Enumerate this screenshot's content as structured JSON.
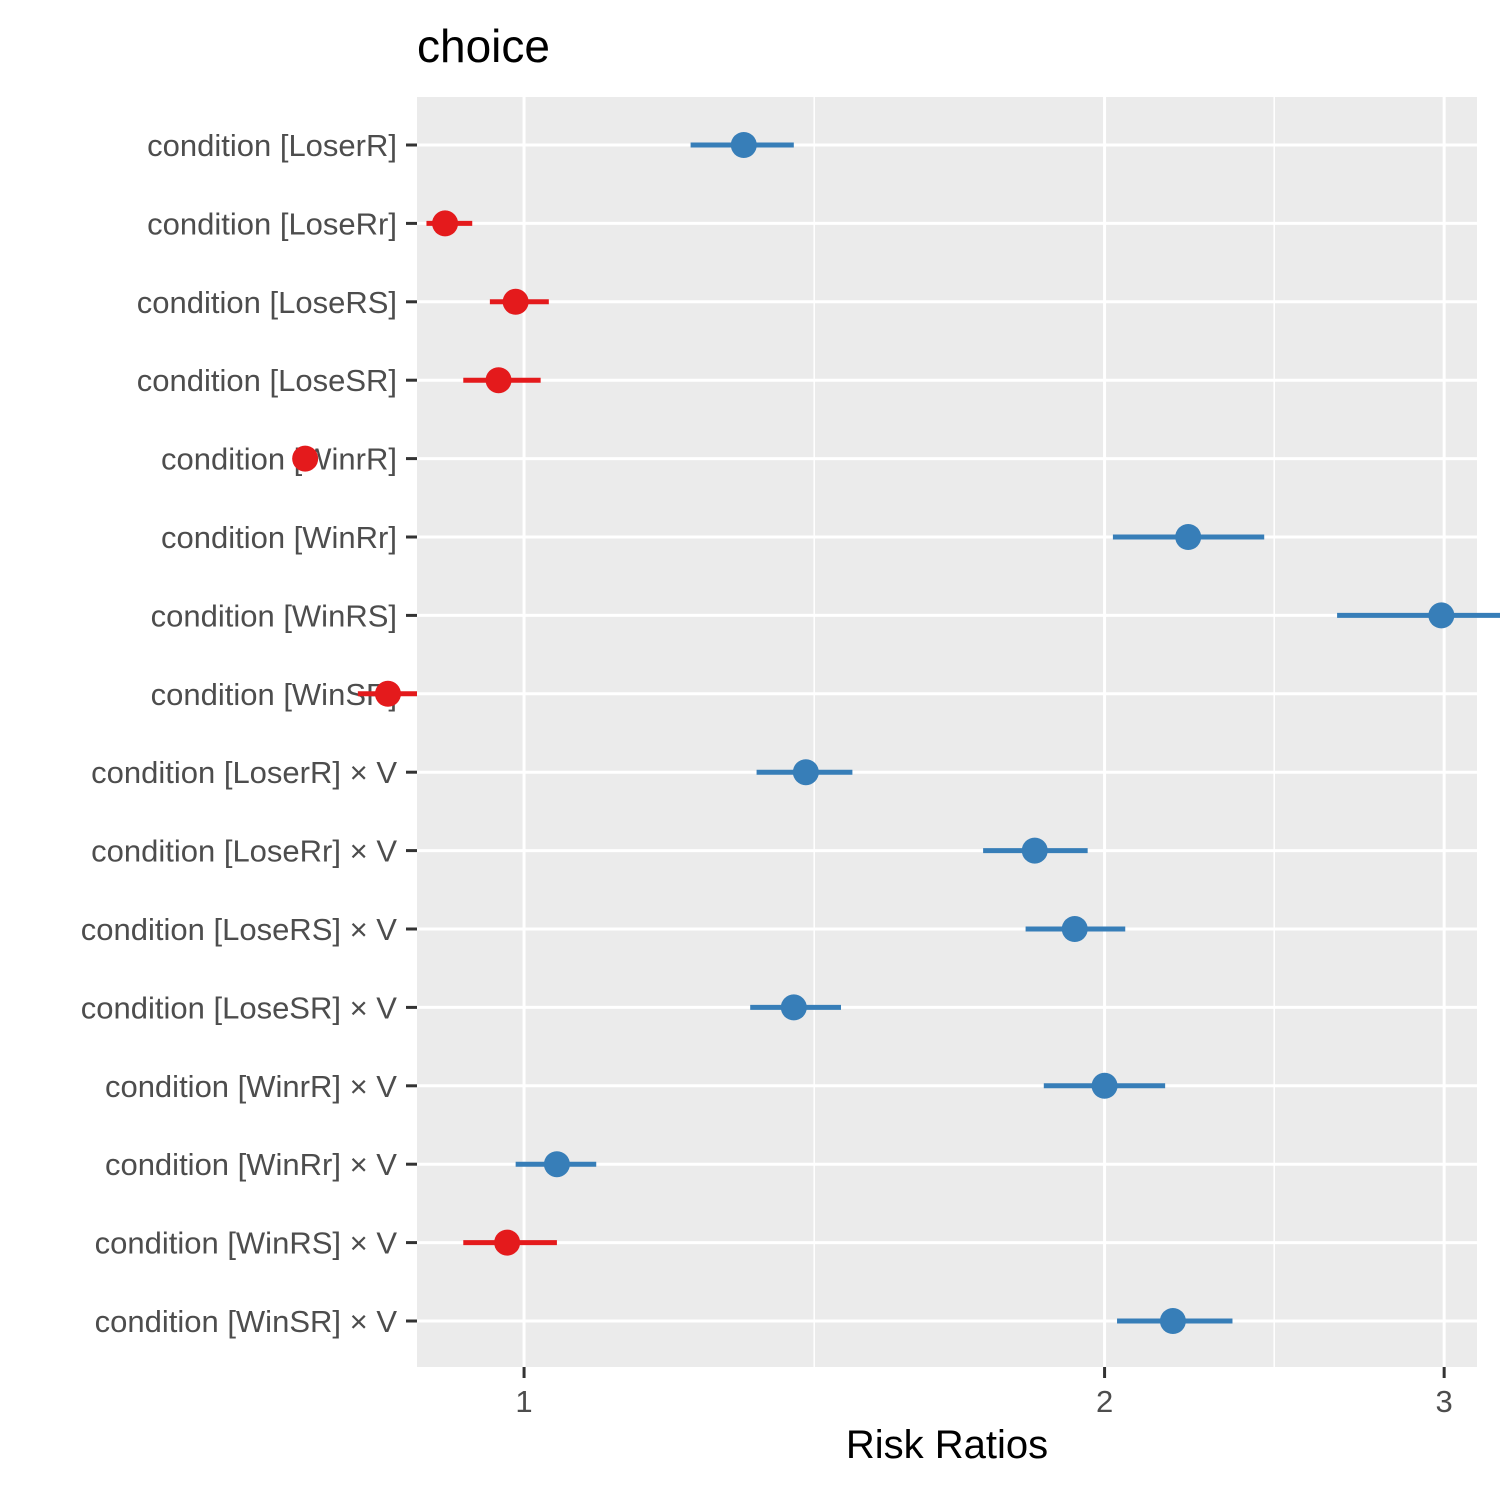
{
  "chart_data": {
    "type": "scatter",
    "title": "choice",
    "xlabel": "Risk Ratios",
    "ylabel": "",
    "x_scale": "log",
    "xlim": [
      0.88,
      3.12
    ],
    "x_ticks": [
      1,
      2,
      3
    ],
    "x_tick_labels": [
      "1",
      "2",
      "3"
    ],
    "x_minor_ticks": [
      0.707,
      1.414,
      2.449
    ],
    "grid": true,
    "legend": "none",
    "colors": {
      "positive": "#377EB8",
      "negative": "#E41A1C",
      "panel": "#EBEBEB",
      "grid": "#FFFFFF"
    },
    "categories": [
      "condition [LoserR]",
      "condition [LoseRr]",
      "condition [LoseRS]",
      "condition [LoseSR]",
      "condition [WinrR]",
      "condition [WinRr]",
      "condition [WinRS]",
      "condition [WinSR]",
      "condition [LoserR] × V",
      "condition [LoseRr] × V",
      "condition [LoseRS] × V",
      "condition [LoseSR] × V",
      "condition [WinrR] × V",
      "condition [WinRr] × V",
      "condition [WinRS] × V",
      "condition [WinSR] × V"
    ],
    "estimates": [
      1.3,
      0.91,
      0.99,
      0.97,
      0.77,
      2.21,
      2.99,
      0.85,
      1.4,
      1.84,
      1.93,
      1.38,
      2.0,
      1.04,
      0.98,
      2.17
    ],
    "ci_low": [
      1.22,
      0.89,
      0.96,
      0.93,
      0.76,
      2.02,
      2.64,
      0.82,
      1.32,
      1.73,
      1.82,
      1.31,
      1.86,
      0.99,
      0.93,
      2.03
    ],
    "ci_high": [
      1.38,
      0.94,
      1.03,
      1.02,
      0.78,
      2.42,
      3.43,
      0.88,
      1.48,
      1.96,
      2.05,
      1.46,
      2.15,
      1.09,
      1.04,
      2.33
    ]
  }
}
